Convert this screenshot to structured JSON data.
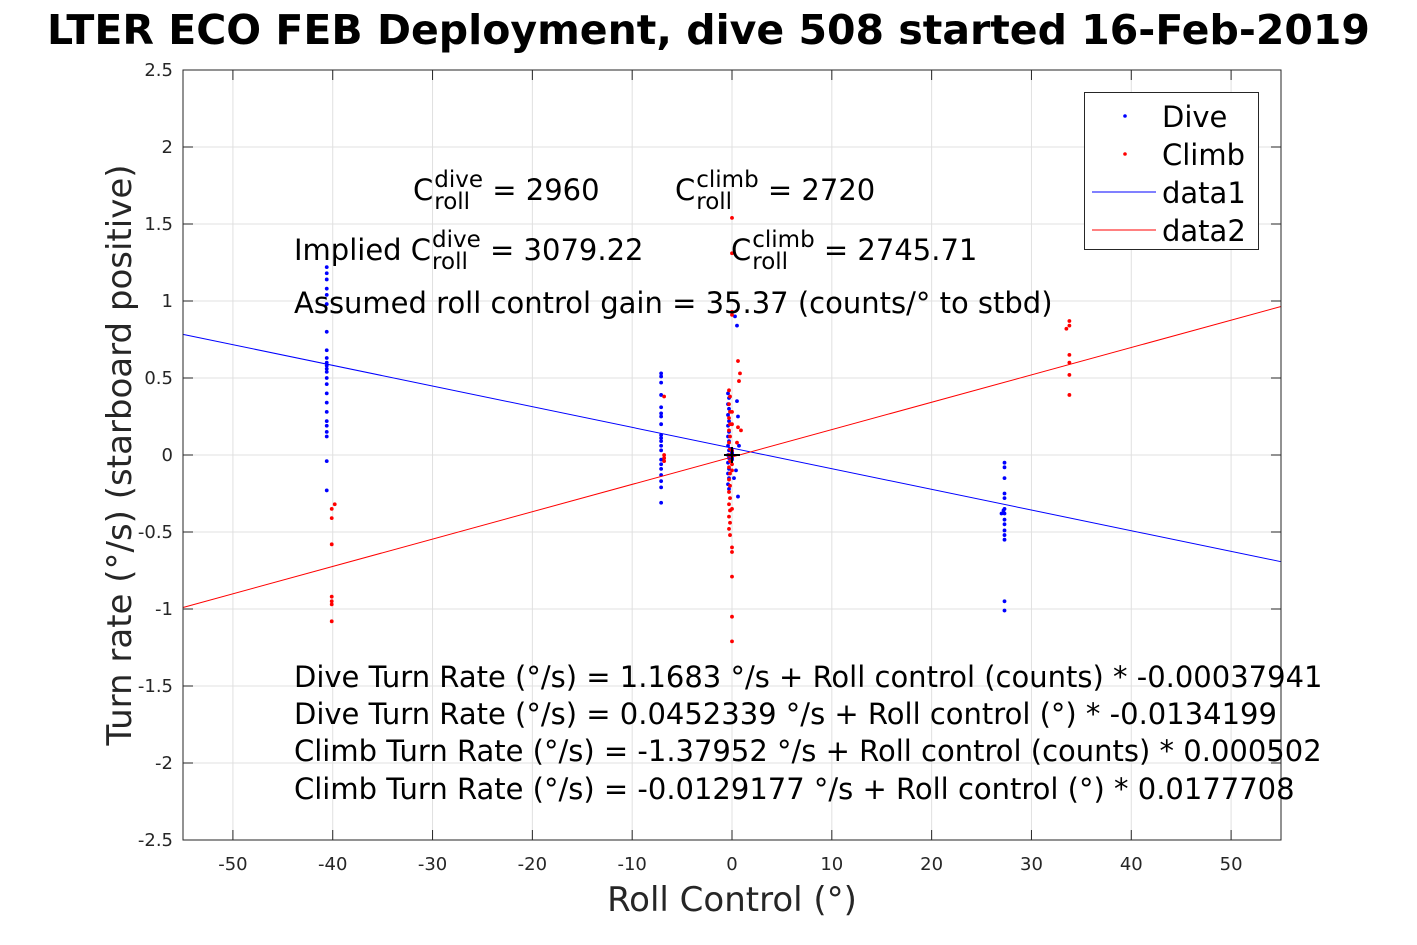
{
  "title": "LTER ECO FEB Deployment, dive 508 started 16-Feb-2019",
  "annotations": {
    "c_roll": "C",
    "roll_sub": "roll",
    "dive_sup": "dive",
    "climb_sup": "climb",
    "c_dive_value": "= 2960",
    "c_climb_value": "= 2720",
    "implied_prefix": "Implied C",
    "implied_dive_value": "= 3079.22",
    "implied_climb_value": "= 2745.71",
    "gain_text": "Assumed roll control gain = 35.37 (counts/° to stbd)"
  },
  "equations": [
    "Dive Turn Rate (°/s) = 1.1683 °/s + Roll control (counts) * -0.00037941",
    "Dive Turn Rate (°/s) = 0.0452339 °/s + Roll control (°) * -0.0134199",
    "Climb Turn Rate (°/s) = -1.37952 °/s + Roll control (counts) * 0.000502",
    "Climb Turn Rate (°/s) = -0.0129177 °/s + Roll control (°) * 0.0177708"
  ],
  "legend": [
    "Dive",
    "Climb",
    "data1",
    "data2"
  ],
  "colors": {
    "dive": "#0000ff",
    "climb": "#ff0000",
    "grid": "#e0e0e0",
    "axis": "#262626"
  },
  "chart_data": {
    "type": "scatter",
    "xlabel": "Roll Control (°)",
    "ylabel": "Turn rate (°/s) (starboard positive)",
    "xlim": [
      -55,
      55
    ],
    "ylim": [
      -2.5,
      2.5
    ],
    "xticks": [
      -50,
      -40,
      -30,
      -20,
      -10,
      0,
      10,
      20,
      30,
      40,
      50
    ],
    "yticks": [
      -2.5,
      -2,
      -1.5,
      -1,
      -0.5,
      0,
      0.5,
      1,
      1.5,
      2,
      2.5
    ],
    "grid": true,
    "legend_position": "top-right",
    "series": [
      {
        "name": "Dive",
        "style": "points",
        "x": [
          -40.6,
          -40.6,
          -40.6,
          -40.6,
          -40.6,
          -40.6,
          -40.6,
          -40.6,
          -40.6,
          -40.6,
          -40.6,
          -40.6,
          -40.6,
          -40.6,
          -40.6,
          -40.6,
          -40.6,
          -40.6,
          -40.6,
          -40.6,
          -40.6,
          -40.6,
          -40.6,
          -40.6,
          -7.1,
          -7.1,
          -7.1,
          -7.1,
          -7.1,
          -7.1,
          -7.1,
          -7.1,
          -7.1,
          -7.1,
          -7.1,
          -7.1,
          -7.1,
          -7.1,
          -7.1,
          -7.1,
          -7.1,
          -7.1,
          -7.1,
          -7.1,
          -0.4,
          -0.3,
          -0.4,
          -0.3,
          -0.4,
          -0.3,
          -0.4,
          -0.3,
          -0.4,
          -0.3,
          -0.4,
          -0.3,
          -0.4,
          -0.3,
          -0.4,
          -0.3,
          -0.4,
          -0.3,
          -0.4,
          -0.3,
          0.0,
          0.0,
          0.0,
          0.0,
          0.0,
          0.0,
          0.0,
          0.0,
          0.0,
          0.0,
          0.3,
          0.5,
          0.5,
          0.6,
          0.6,
          0.7,
          0.2,
          0.4,
          27.3,
          27.3,
          27.3,
          27.3,
          27.3,
          27.3,
          27.3,
          27.3,
          27.3,
          27.3,
          27.3,
          27.3,
          27.3,
          27.3,
          27.0,
          27.2
        ],
        "y": [
          1.22,
          1.18,
          1.14,
          1.08,
          1.04,
          0.98,
          0.8,
          0.68,
          0.63,
          0.6,
          0.58,
          0.56,
          0.54,
          0.5,
          0.46,
          0.4,
          0.34,
          0.28,
          0.22,
          0.19,
          0.15,
          0.12,
          -0.04,
          -0.23,
          0.53,
          0.51,
          0.47,
          0.39,
          0.31,
          0.27,
          0.25,
          0.2,
          0.13,
          0.11,
          0.09,
          0.06,
          0.03,
          -0.03,
          -0.06,
          -0.09,
          -0.13,
          -0.17,
          -0.21,
          -0.31,
          0.4,
          0.37,
          0.33,
          0.3,
          0.26,
          0.22,
          0.19,
          0.15,
          0.12,
          0.09,
          0.06,
          0.03,
          0.0,
          -0.02,
          -0.05,
          -0.09,
          -0.12,
          -0.15,
          -0.19,
          -0.22,
          0.02,
          0.0,
          -0.01,
          0.01,
          0.0,
          -0.02,
          0.01,
          0.0,
          0.03,
          -0.03,
          0.9,
          0.84,
          0.35,
          0.25,
          -0.27,
          0.06,
          -0.15,
          -0.1,
          -0.05,
          -0.08,
          -0.15,
          -0.25,
          -0.28,
          -0.35,
          -0.38,
          -0.42,
          -0.45,
          -0.49,
          -0.52,
          -0.55,
          -0.95,
          -1.01,
          -0.38,
          -0.36
        ]
      },
      {
        "name": "Climb",
        "style": "points",
        "x": [
          -40.1,
          -40.1,
          -40.1,
          -40.1,
          -40.1,
          -40.1,
          -40.1,
          -39.8,
          -6.8,
          -6.8,
          -6.8,
          -6.8,
          -0.3,
          -0.2,
          -0.3,
          -0.2,
          -0.3,
          -0.2,
          -0.3,
          -0.2,
          -0.3,
          -0.2,
          -0.3,
          -0.2,
          -0.3,
          -0.2,
          -0.3,
          -0.2,
          -0.3,
          -0.2,
          -0.3,
          -0.2,
          -0.3,
          -0.2,
          -0.3,
          -0.2,
          0.0,
          0.0,
          0.0,
          0.0,
          0.0,
          0.0,
          0.0,
          0.0,
          0.0,
          0.0,
          0.0,
          0.0,
          0.0,
          0.0,
          0.0,
          0.6,
          0.8,
          0.7,
          0.6,
          0.5,
          0.9,
          33.8,
          33.8,
          33.8,
          33.8,
          33.8,
          33.8,
          33.5
        ],
        "y": [
          -0.35,
          -0.41,
          -0.58,
          -0.92,
          -0.95,
          -0.97,
          -1.08,
          -0.32,
          0.38,
          0.0,
          -0.02,
          -0.04,
          0.42,
          0.38,
          0.33,
          0.28,
          0.24,
          0.2,
          0.16,
          0.12,
          0.08,
          0.04,
          0.0,
          -0.04,
          -0.08,
          -0.12,
          -0.16,
          -0.2,
          -0.24,
          -0.28,
          -0.32,
          -0.36,
          -0.4,
          -0.44,
          -0.48,
          -0.52,
          1.54,
          1.31,
          0.93,
          0.91,
          0.28,
          0.2,
          -0.06,
          -0.1,
          -0.35,
          -0.6,
          -0.63,
          -0.79,
          -1.05,
          -1.21,
          0.03,
          0.61,
          0.53,
          0.48,
          0.18,
          0.08,
          0.16,
          0.87,
          0.84,
          0.65,
          0.6,
          0.52,
          0.39,
          0.82
        ]
      },
      {
        "name": "data1",
        "style": "line",
        "x": [
          -55,
          55
        ],
        "y": [
          0.7833,
          -0.6928
        ]
      },
      {
        "name": "data2",
        "style": "line",
        "x": [
          -55,
          55
        ],
        "y": [
          -0.9903,
          0.9645
        ]
      }
    ]
  }
}
